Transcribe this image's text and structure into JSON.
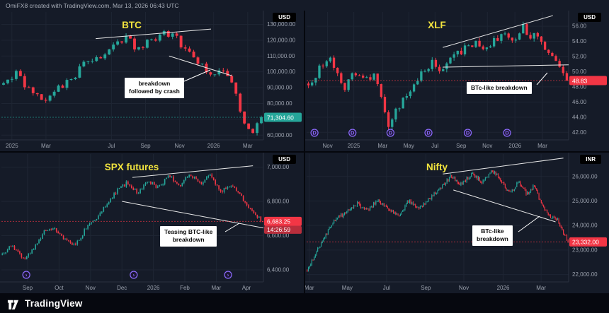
{
  "header": {
    "text": "OmiFX8 created with TradingView.com, Mar 13, 2026 06:43 UTC"
  },
  "footer": {
    "brand": "TradingView"
  },
  "colors": {
    "bg": "#151b28",
    "grid": "#1e2533",
    "axis_border": "#2a3140",
    "axis_text": "#9ba1ad",
    "up": "#26a69a",
    "down": "#f23645",
    "title_yellow": "#f2e43e",
    "annotation_bg": "#ffffff",
    "trendline": "#e9e9e9",
    "purple": "#8d6bff",
    "countdown_bg": "#b82e3c"
  },
  "chart_data": [
    {
      "key": "btc",
      "type": "candlestick",
      "title": "BTC",
      "currency": "USD",
      "n": 62,
      "seed": 42,
      "noise": 0.03,
      "ymin": 57000,
      "ymax": 136000,
      "anchors": [
        [
          0,
          94000
        ],
        [
          0.05,
          99000
        ],
        [
          0.1,
          88000
        ],
        [
          0.16,
          81000
        ],
        [
          0.22,
          90000
        ],
        [
          0.27,
          97000
        ],
        [
          0.33,
          108000
        ],
        [
          0.38,
          110500
        ],
        [
          0.44,
          118000
        ],
        [
          0.48,
          122500
        ],
        [
          0.52,
          113500
        ],
        [
          0.57,
          120000
        ],
        [
          0.62,
          125000
        ],
        [
          0.67,
          121000
        ],
        [
          0.72,
          112000
        ],
        [
          0.77,
          103000
        ],
        [
          0.81,
          97500
        ],
        [
          0.85,
          101000
        ],
        [
          0.89,
          92000
        ],
        [
          0.93,
          68000
        ],
        [
          0.96,
          61500
        ],
        [
          1,
          71304.6
        ]
      ],
      "y_ticks": [
        {
          "v": 130000,
          "label": "130,000.00"
        },
        {
          "v": 120000,
          "label": "120,000.00"
        },
        {
          "v": 110000,
          "label": "110,000.00"
        },
        {
          "v": 100000,
          "label": "100,000.00"
        },
        {
          "v": 90000,
          "label": "90,000.00"
        },
        {
          "v": 80000,
          "label": "80,000.00"
        },
        {
          "v": 70000,
          "label": "70,000.00"
        },
        {
          "v": 60000,
          "label": "60,000.00"
        }
      ],
      "x_labels": [
        {
          "f": 0.04,
          "label": "2025"
        },
        {
          "f": 0.17,
          "label": "Mar"
        },
        {
          "f": 0.42,
          "label": "Jul"
        },
        {
          "f": 0.55,
          "label": "Sep"
        },
        {
          "f": 0.68,
          "label": "Nov"
        },
        {
          "f": 0.81,
          "label": "2026"
        },
        {
          "f": 0.94,
          "label": "Mar"
        }
      ],
      "lines": [
        [
          0.36,
          121000,
          0.8,
          127000
        ],
        [
          0.64,
          110000,
          0.88,
          97500
        ]
      ],
      "markers": null,
      "last": {
        "value": 71304.6,
        "label": "71,304.60",
        "dir": "up"
      },
      "annotation": {
        "text": "breakdown\nfollowed by crash",
        "line": [
          260,
          100,
          297,
          84
        ]
      }
    },
    {
      "key": "xlf",
      "type": "candlestick",
      "title": "XLF",
      "currency": "USD",
      "n": 72,
      "seed": 7,
      "noise": 0.035,
      "ymin": 41,
      "ymax": 57.5,
      "anchors": [
        [
          0,
          48.5
        ],
        [
          0.04,
          50.2
        ],
        [
          0.09,
          51.6
        ],
        [
          0.14,
          48.0
        ],
        [
          0.18,
          49.8
        ],
        [
          0.22,
          48.5
        ],
        [
          0.26,
          50.0
        ],
        [
          0.29,
          45.0
        ],
        [
          0.31,
          42.8
        ],
        [
          0.36,
          46.0
        ],
        [
          0.4,
          48.0
        ],
        [
          0.44,
          50.0
        ],
        [
          0.48,
          51.3
        ],
        [
          0.52,
          50.2
        ],
        [
          0.56,
          51.8
        ],
        [
          0.6,
          52.8
        ],
        [
          0.64,
          54.0
        ],
        [
          0.68,
          52.8
        ],
        [
          0.72,
          54.2
        ],
        [
          0.76,
          55.2
        ],
        [
          0.8,
          54.0
        ],
        [
          0.83,
          55.8
        ],
        [
          0.86,
          54.3
        ],
        [
          0.89,
          55.0
        ],
        [
          0.92,
          53.0
        ],
        [
          0.95,
          51.2
        ],
        [
          0.98,
          50.4
        ],
        [
          1,
          48.83
        ]
      ],
      "y_ticks": [
        {
          "v": 56,
          "label": "56.00"
        },
        {
          "v": 54,
          "label": "54.00"
        },
        {
          "v": 52,
          "label": "52.00"
        },
        {
          "v": 50,
          "label": "50.00"
        },
        {
          "v": 48,
          "label": "48.00"
        },
        {
          "v": 46,
          "label": "46.00"
        },
        {
          "v": 44,
          "label": "44.00"
        },
        {
          "v": 42,
          "label": "42.00"
        }
      ],
      "x_labels": [
        {
          "f": 0.08,
          "label": "Nov"
        },
        {
          "f": 0.18,
          "label": "2025"
        },
        {
          "f": 0.29,
          "label": "Mar"
        },
        {
          "f": 0.39,
          "label": "May"
        },
        {
          "f": 0.49,
          "label": "Jul"
        },
        {
          "f": 0.59,
          "label": "Sep"
        },
        {
          "f": 0.69,
          "label": "Nov"
        },
        {
          "f": 0.795,
          "label": "2026"
        },
        {
          "f": 0.9,
          "label": "Mar"
        }
      ],
      "lines": [
        [
          0.52,
          53.2,
          0.94,
          57.4
        ],
        [
          0.52,
          50.6,
          1,
          50.9
        ]
      ],
      "markers": {
        "glyph": "D",
        "items": [
          0.03,
          0.175,
          0.32,
          0.465,
          0.615,
          0.765
        ]
      },
      "last": {
        "value": 48.83,
        "label": "48.83",
        "dir": "down"
      },
      "annotation": {
        "text": "BTc-like breakdown",
        "line": [
          327,
          105,
          342,
          88
        ]
      }
    },
    {
      "key": "spx",
      "type": "candlestick",
      "title": "SPX futures",
      "currency": "USD",
      "n": 150,
      "seed": 19,
      "noise": 0.016,
      "ymin": 6330,
      "ymax": 7060,
      "anchors": [
        [
          0,
          6500
        ],
        [
          0.04,
          6540
        ],
        [
          0.08,
          6460
        ],
        [
          0.12,
          6520
        ],
        [
          0.16,
          6620
        ],
        [
          0.2,
          6640
        ],
        [
          0.24,
          6580
        ],
        [
          0.28,
          6540
        ],
        [
          0.32,
          6640
        ],
        [
          0.36,
          6700
        ],
        [
          0.4,
          6780
        ],
        [
          0.44,
          6860
        ],
        [
          0.48,
          6910
        ],
        [
          0.52,
          6850
        ],
        [
          0.56,
          6920
        ],
        [
          0.6,
          6880
        ],
        [
          0.64,
          6950
        ],
        [
          0.68,
          6890
        ],
        [
          0.72,
          6960
        ],
        [
          0.76,
          6900
        ],
        [
          0.8,
          6960
        ],
        [
          0.84,
          6850
        ],
        [
          0.87,
          6900
        ],
        [
          0.9,
          6870
        ],
        [
          0.93,
          6800
        ],
        [
          0.96,
          6750
        ],
        [
          1,
          6683.25
        ]
      ],
      "y_ticks": [
        {
          "v": 7000,
          "label": "7,000.00"
        },
        {
          "v": 6800,
          "label": "6,800.00"
        },
        {
          "v": 6600,
          "label": "6,600.00"
        },
        {
          "v": 6400,
          "label": "6,400.00"
        }
      ],
      "x_labels": [
        {
          "f": 0.1,
          "label": "Sep"
        },
        {
          "f": 0.22,
          "label": "Oct"
        },
        {
          "f": 0.34,
          "label": "Nov"
        },
        {
          "f": 0.46,
          "label": "Dec"
        },
        {
          "f": 0.58,
          "label": "2026"
        },
        {
          "f": 0.7,
          "label": "Feb"
        },
        {
          "f": 0.82,
          "label": "Mar"
        },
        {
          "f": 0.935,
          "label": "Apr"
        }
      ],
      "lines": [
        [
          0.5,
          6940,
          0.96,
          7008
        ],
        [
          0.46,
          6800,
          1,
          6645
        ]
      ],
      "markers": {
        "glyph": "›",
        "items": [
          0.095,
          0.505,
          0.865
        ]
      },
      "last": {
        "value": 6683.25,
        "label": "6,683.25",
        "dir": "down",
        "countdown": "14:26:59"
      },
      "annotation": {
        "text": "Teasing BTC-like\nbreakdown",
        "line": [
          318,
          112,
          338,
          100
        ]
      }
    },
    {
      "key": "nifty",
      "type": "candlestick",
      "title": "Nifty",
      "currency": "INR",
      "n": 225,
      "seed": 3,
      "noise": 0.016,
      "ymin": 21700,
      "ymax": 26800,
      "anchors": [
        [
          0,
          22200
        ],
        [
          0.03,
          22800
        ],
        [
          0.07,
          23600
        ],
        [
          0.11,
          24300
        ],
        [
          0.15,
          24500
        ],
        [
          0.19,
          24900
        ],
        [
          0.23,
          24600
        ],
        [
          0.27,
          25000
        ],
        [
          0.31,
          24700
        ],
        [
          0.35,
          24400
        ],
        [
          0.39,
          25000
        ],
        [
          0.43,
          24700
        ],
        [
          0.47,
          25100
        ],
        [
          0.51,
          25500
        ],
        [
          0.55,
          26000
        ],
        [
          0.59,
          25700
        ],
        [
          0.63,
          26100
        ],
        [
          0.67,
          25800
        ],
        [
          0.71,
          26250
        ],
        [
          0.75,
          25700
        ],
        [
          0.78,
          25300
        ],
        [
          0.81,
          25800
        ],
        [
          0.84,
          25300
        ],
        [
          0.87,
          25600
        ],
        [
          0.9,
          24900
        ],
        [
          0.93,
          24400
        ],
        [
          0.96,
          24200
        ],
        [
          1,
          23332
        ]
      ],
      "y_ticks": [
        {
          "v": 26000,
          "label": "26,000.00"
        },
        {
          "v": 25000,
          "label": "25,000.00"
        },
        {
          "v": 24000,
          "label": "24,000.00"
        },
        {
          "v": 23000,
          "label": "23,000.00"
        },
        {
          "v": 22000,
          "label": "22,000.00"
        }
      ],
      "x_labels": [
        {
          "f": 0.01,
          "label": "Mar"
        },
        {
          "f": 0.155,
          "label": "May"
        },
        {
          "f": 0.305,
          "label": "Jul"
        },
        {
          "f": 0.455,
          "label": "Sep"
        },
        {
          "f": 0.6,
          "label": "Nov"
        },
        {
          "f": 0.75,
          "label": "2026"
        },
        {
          "f": 0.895,
          "label": "Mar"
        }
      ],
      "lines": [
        [
          0.52,
          26100,
          0.98,
          26750
        ],
        [
          0.56,
          25450,
          0.95,
          24150
        ]
      ],
      "markers": null,
      "last": {
        "value": 23332,
        "label": "23,332.00",
        "dir": "down"
      },
      "annotation": {
        "text": "BTc-like\nbreakdown",
        "line": [
          301,
          112,
          331,
          90
        ]
      }
    }
  ]
}
